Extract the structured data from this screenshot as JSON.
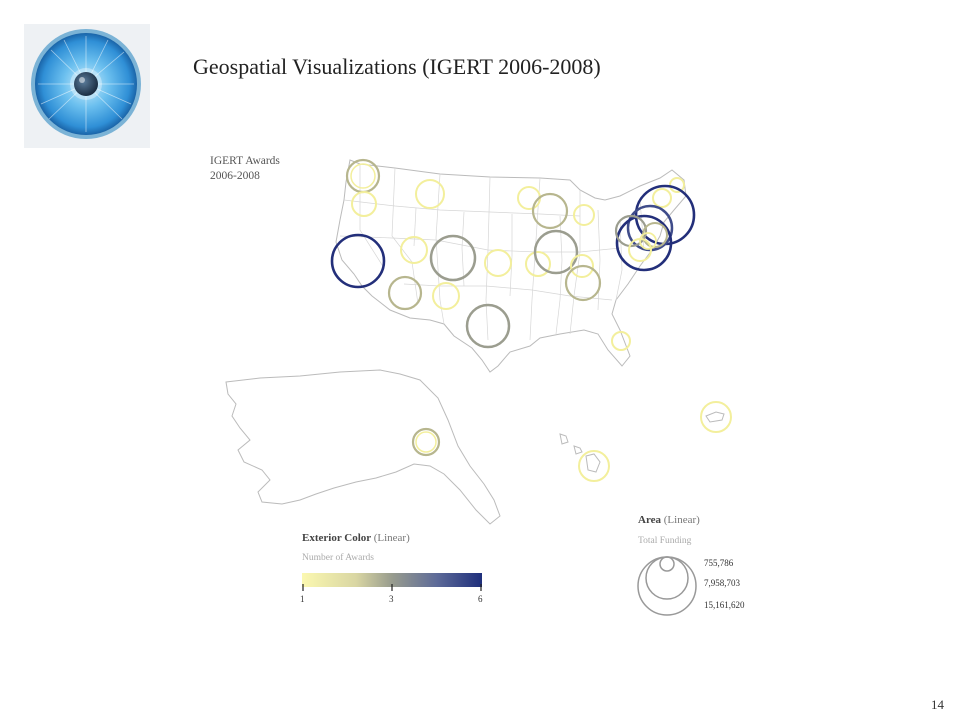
{
  "slide": {
    "title": "Geospatial Visualizations (IGERT 2006-2008)",
    "page_number": "14"
  },
  "logo": {
    "icon": "eye-iris-icon",
    "colors": [
      "#3a9fe0",
      "#8fd0f5",
      "#1b5f96"
    ]
  },
  "map": {
    "title_line1": "IGERT Awards",
    "title_line2": "2006-2008",
    "outline_color": "#bbbbbb"
  },
  "legend_color": {
    "title": "Exterior Color",
    "title_suffix": "(Linear)",
    "subtitle": "Number of Awards",
    "ticks": [
      "1",
      "3",
      "6"
    ],
    "gradient": [
      "#fbf8b0",
      "#c8c49a",
      "#888f8c",
      "#4a5a95",
      "#1f2f7c"
    ]
  },
  "legend_area": {
    "title": "Area",
    "title_suffix": "(Linear)",
    "subtitle": "Total Funding",
    "values": [
      "755,786",
      "7,958,703",
      "15,161,620"
    ]
  }
}
